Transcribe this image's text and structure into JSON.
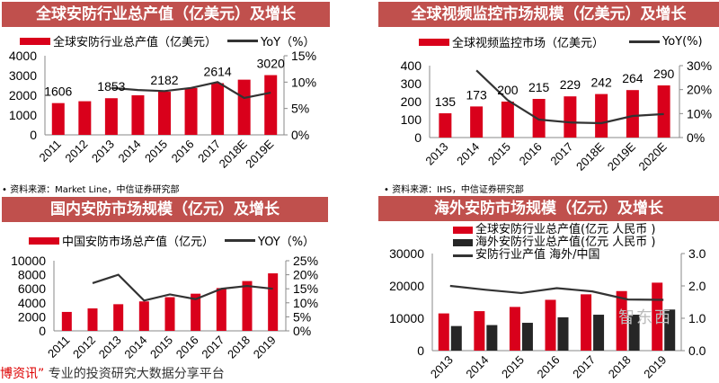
{
  "chart_data": [
    {
      "type": "bar+line",
      "title": "全球安防行业总产值（亿美元）及增长",
      "categories": [
        "2011",
        "2012",
        "2013",
        "2014",
        "2015",
        "2016",
        "2017",
        "2018E",
        "2019E"
      ],
      "series": [
        {
          "name": "全球安防行业总产值（亿美元）",
          "type": "bar",
          "color": "#d9001b",
          "values": [
            1606,
            1700,
            1853,
            2000,
            2182,
            2370,
            2614,
            2790,
            3020
          ]
        },
        {
          "name": "YoY（%）",
          "type": "line",
          "axis": "right",
          "color": "#333333",
          "values": [
            null,
            null,
            8.9,
            8.5,
            8.3,
            8.9,
            10.0,
            7.0,
            8.0
          ]
        }
      ],
      "data_labels": [
        "1606",
        null,
        "1853",
        null,
        "2182",
        null,
        "2614",
        null,
        "3020"
      ],
      "ylim": [
        0,
        4000
      ],
      "yticks": [
        "0",
        "1000",
        "2000",
        "3000",
        "4000"
      ],
      "y2lim": [
        0,
        15
      ],
      "y2ticks": [
        "0%",
        "5%",
        "10%",
        "15%"
      ],
      "source": "资料来源：Market Line，中信证券研究部",
      "legend": "top"
    },
    {
      "type": "bar+line",
      "title": "全球视频监控市场规模（亿美元）及增长",
      "categories": [
        "2013",
        "2014",
        "2015",
        "2016",
        "2017",
        "2018E",
        "2019E",
        "2020E"
      ],
      "series": [
        {
          "name": "全球视频监控市场（亿美元）",
          "type": "bar",
          "color": "#d9001b",
          "values": [
            135,
            173,
            200,
            215,
            229,
            242,
            264,
            290
          ]
        },
        {
          "name": "YoY(%)",
          "type": "line",
          "axis": "right",
          "color": "#333333",
          "values": [
            null,
            28.0,
            15.6,
            7.5,
            6.3,
            6.0,
            9.0,
            9.8
          ]
        }
      ],
      "data_labels": [
        "135",
        "173",
        "200",
        "215",
        "229",
        "242",
        "264",
        "290"
      ],
      "ylim": [
        0,
        400
      ],
      "yticks": [
        "0",
        "100",
        "200",
        "300",
        "400"
      ],
      "y2lim": [
        0,
        30
      ],
      "y2ticks": [
        "0%",
        "10%",
        "20%",
        "30%"
      ],
      "source": "资料来源：IHS，中信证券研究部",
      "legend": "top"
    },
    {
      "type": "bar+line",
      "title": "国内安防市场规模（亿元）及增长",
      "categories": [
        "2011",
        "2012",
        "2013",
        "2014",
        "2015",
        "2016",
        "2017",
        "2018",
        "2019"
      ],
      "series": [
        {
          "name": "中国安防市场总产值（亿元）",
          "type": "bar",
          "color": "#d9001b",
          "values": [
            2700,
            3200,
            3800,
            4200,
            4800,
            5300,
            6100,
            7100,
            8200
          ]
        },
        {
          "name": "YOY（%）",
          "type": "line",
          "axis": "right",
          "color": "#333333",
          "values": [
            null,
            17.0,
            20.0,
            10.8,
            13.0,
            11.3,
            15.0,
            16.0,
            15.0
          ]
        }
      ],
      "ylim": [
        0,
        10000
      ],
      "yticks": [
        "0",
        "2000",
        "4000",
        "6000",
        "8000",
        "10000"
      ],
      "y2lim": [
        0,
        25
      ],
      "y2ticks": [
        "0%",
        "5%",
        "10%",
        "15%",
        "20%",
        "25%"
      ],
      "legend": "top"
    },
    {
      "type": "bar+line",
      "title": "海外安防市场规模（亿元）及增长",
      "categories": [
        "2013",
        "2014",
        "2015",
        "2016",
        "2017",
        "2018",
        "2019"
      ],
      "series": [
        {
          "name": "全球安防行业总产值(亿元 人民币 )",
          "type": "bar",
          "color": "#d9001b",
          "values": [
            11500,
            12200,
            13500,
            15700,
            17400,
            18400,
            21000
          ]
        },
        {
          "name": "海外安防行业总产值(亿元 人民币 )",
          "type": "bar",
          "color": "#262626",
          "values": [
            7600,
            7900,
            8600,
            10300,
            11100,
            11100,
            12700
          ]
        },
        {
          "name": "安防行业产值 海外/中国",
          "type": "line",
          "axis": "right",
          "color": "#333333",
          "values": [
            2.0,
            1.88,
            1.78,
            1.93,
            1.83,
            1.58,
            1.57
          ]
        }
      ],
      "ylim": [
        0,
        30000
      ],
      "yticks": [
        "0",
        "10000",
        "20000",
        "30000"
      ],
      "y2lim": [
        0,
        3
      ],
      "y2ticks": [
        "0.0",
        "1.0",
        "2.0",
        "3.0"
      ],
      "legend": "top"
    }
  ],
  "watermark": {
    "prefix": "博资讯”",
    "text": "专业的投资研究大数据分享平台",
    "logo": "智东西"
  }
}
